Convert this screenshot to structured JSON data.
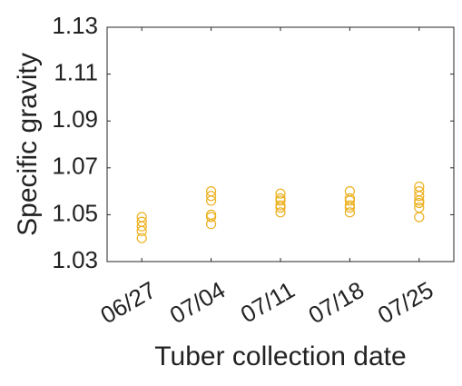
{
  "chart_data": {
    "type": "scatter",
    "x_label": "Tuber collection date",
    "y_label": "Specific gravity",
    "categories": [
      "06/27",
      "07/04",
      "07/11",
      "07/18",
      "07/25"
    ],
    "values": [
      [
        1.049,
        1.047,
        1.045,
        1.043,
        1.04
      ],
      [
        1.06,
        1.058,
        1.056,
        1.05,
        1.049,
        1.046
      ],
      [
        1.059,
        1.057,
        1.056,
        1.054,
        1.053,
        1.051
      ],
      [
        1.06,
        1.057,
        1.056,
        1.054,
        1.053,
        1.051
      ],
      [
        1.062,
        1.06,
        1.058,
        1.056,
        1.055,
        1.053,
        1.049
      ]
    ],
    "color": "#EDB120",
    "ylim": [
      1.03,
      1.13
    ],
    "yticks": [
      1.03,
      1.05,
      1.07,
      1.09,
      1.11,
      1.13
    ]
  }
}
